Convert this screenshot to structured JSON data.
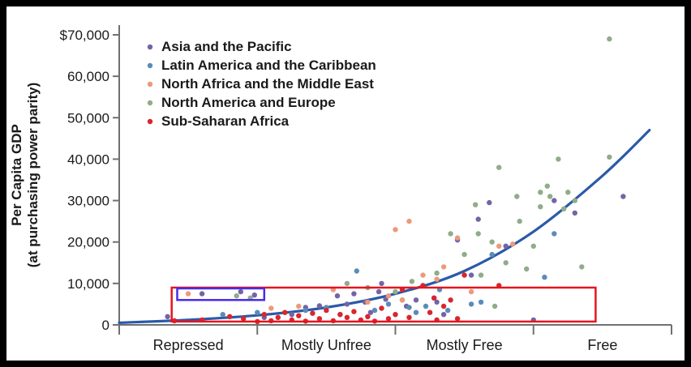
{
  "chart_data": {
    "type": "scatter",
    "ylabel_line1": "Per Capita GDP",
    "ylabel_line2": "(at purchasing power parity)",
    "ylim": [
      0,
      70000
    ],
    "y_ticks": [
      {
        "value": 0,
        "label": "0"
      },
      {
        "value": 10000,
        "label": "10,000"
      },
      {
        "value": 20000,
        "label": "20,000"
      },
      {
        "value": 30000,
        "label": "30,000"
      },
      {
        "value": 40000,
        "label": "40,000"
      },
      {
        "value": 50000,
        "label": "50,000"
      },
      {
        "value": 60000,
        "label": "60,000"
      },
      {
        "value": 70000,
        "label": "$70,000"
      }
    ],
    "xlim": [
      0,
      4
    ],
    "categories": [
      "Repressed",
      "Mostly Unfree",
      "Mostly Free",
      "Free"
    ],
    "legend_position": "top-left",
    "series": [
      {
        "name": "Asia and the Pacific",
        "color": "#7464a6",
        "points": [
          [
            0.35,
            2000
          ],
          [
            0.6,
            7500
          ],
          [
            0.88,
            8000
          ],
          [
            0.98,
            7200
          ],
          [
            1.05,
            1800
          ],
          [
            1.25,
            2500
          ],
          [
            1.35,
            4200
          ],
          [
            1.45,
            4600
          ],
          [
            1.58,
            7000
          ],
          [
            1.65,
            5000
          ],
          [
            1.7,
            7500
          ],
          [
            1.78,
            5500
          ],
          [
            1.82,
            3000
          ],
          [
            1.88,
            8000
          ],
          [
            1.93,
            6200
          ],
          [
            2.08,
            4500
          ],
          [
            2.15,
            6000
          ],
          [
            2.3,
            5500
          ],
          [
            2.35,
            2500
          ],
          [
            2.45,
            20500
          ],
          [
            2.55,
            12000
          ],
          [
            2.6,
            25500
          ],
          [
            2.68,
            29500
          ],
          [
            2.8,
            19000
          ],
          [
            3.15,
            30000
          ],
          [
            3.3,
            27000
          ],
          [
            3.65,
            31000
          ],
          [
            3.0,
            1200
          ],
          [
            1.9,
            10000
          ]
        ]
      },
      {
        "name": "Latin America and the Caribbean",
        "color": "#5b8cb8",
        "points": [
          [
            0.75,
            2500
          ],
          [
            1.0,
            3000
          ],
          [
            1.35,
            3500
          ],
          [
            1.5,
            4200
          ],
          [
            1.6,
            2500
          ],
          [
            1.72,
            13000
          ],
          [
            1.85,
            3500
          ],
          [
            1.95,
            5000
          ],
          [
            2.05,
            6000
          ],
          [
            2.1,
            4200
          ],
          [
            2.15,
            3000
          ],
          [
            2.22,
            4500
          ],
          [
            2.28,
            6500
          ],
          [
            2.32,
            8500
          ],
          [
            2.38,
            3500
          ],
          [
            2.55,
            5000
          ],
          [
            2.62,
            5500
          ],
          [
            2.7,
            17000
          ],
          [
            3.08,
            11500
          ],
          [
            3.15,
            22000
          ]
        ]
      },
      {
        "name": "North Africa and the Middle East",
        "color": "#ec9a7a",
        "points": [
          [
            0.5,
            7500
          ],
          [
            1.1,
            4000
          ],
          [
            1.3,
            4500
          ],
          [
            1.55,
            8500
          ],
          [
            1.8,
            5500
          ],
          [
            1.95,
            7000
          ],
          [
            2.0,
            23000
          ],
          [
            2.1,
            25000
          ],
          [
            2.3,
            11000
          ],
          [
            2.35,
            14000
          ],
          [
            2.45,
            21000
          ],
          [
            2.55,
            8000
          ],
          [
            2.75,
            19000
          ],
          [
            2.85,
            19500
          ],
          [
            2.05,
            6000
          ],
          [
            2.2,
            12000
          ]
        ]
      },
      {
        "name": "North America and Europe",
        "color": "#8fad88",
        "points": [
          [
            0.85,
            7000
          ],
          [
            0.95,
            6500
          ],
          [
            1.65,
            10000
          ],
          [
            1.8,
            9000
          ],
          [
            2.0,
            8000
          ],
          [
            2.12,
            10500
          ],
          [
            2.3,
            12500
          ],
          [
            2.4,
            22000
          ],
          [
            2.5,
            17000
          ],
          [
            2.58,
            29000
          ],
          [
            2.62,
            12000
          ],
          [
            2.7,
            20000
          ],
          [
            2.72,
            4500
          ],
          [
            2.75,
            38000
          ],
          [
            2.8,
            15000
          ],
          [
            2.88,
            31000
          ],
          [
            2.9,
            25000
          ],
          [
            2.95,
            13500
          ],
          [
            3.05,
            28500
          ],
          [
            3.05,
            32000
          ],
          [
            3.1,
            33500
          ],
          [
            3.12,
            31000
          ],
          [
            3.18,
            40000
          ],
          [
            3.22,
            28000
          ],
          [
            3.25,
            32000
          ],
          [
            3.3,
            30000
          ],
          [
            3.35,
            14000
          ],
          [
            3.55,
            40500
          ],
          [
            3.55,
            69000
          ],
          [
            2.6,
            22000
          ],
          [
            3.0,
            19000
          ]
        ]
      },
      {
        "name": "Sub-Saharan Africa",
        "color": "#d8262e",
        "points": [
          [
            0.4,
            1000
          ],
          [
            0.6,
            1200
          ],
          [
            0.8,
            2000
          ],
          [
            0.9,
            1500
          ],
          [
            1.0,
            800
          ],
          [
            1.05,
            2500
          ],
          [
            1.1,
            1000
          ],
          [
            1.15,
            1800
          ],
          [
            1.2,
            3000
          ],
          [
            1.25,
            1200
          ],
          [
            1.3,
            2200
          ],
          [
            1.35,
            900
          ],
          [
            1.4,
            2800
          ],
          [
            1.45,
            1500
          ],
          [
            1.5,
            3500
          ],
          [
            1.55,
            1000
          ],
          [
            1.6,
            2500
          ],
          [
            1.65,
            1800
          ],
          [
            1.7,
            3200
          ],
          [
            1.75,
            1200
          ],
          [
            1.8,
            2000
          ],
          [
            1.85,
            900
          ],
          [
            1.9,
            4000
          ],
          [
            1.95,
            1500
          ],
          [
            2.0,
            2500
          ],
          [
            2.05,
            8500
          ],
          [
            2.1,
            1800
          ],
          [
            2.2,
            9500
          ],
          [
            2.25,
            3000
          ],
          [
            2.3,
            1200
          ],
          [
            2.35,
            4500
          ],
          [
            2.4,
            6000
          ],
          [
            2.45,
            1500
          ],
          [
            2.5,
            12000
          ],
          [
            2.75,
            9500
          ],
          [
            2.28,
            6500
          ]
        ]
      }
    ],
    "trendline": {
      "color": "#2a5aa8",
      "points": [
        [
          0,
          500
        ],
        [
          0.5,
          1200
        ],
        [
          1,
          2300
        ],
        [
          1.5,
          4200
        ],
        [
          2,
          7500
        ],
        [
          2.5,
          13000
        ],
        [
          3,
          22500
        ],
        [
          3.5,
          36000
        ],
        [
          3.84,
          47000
        ]
      ]
    },
    "annotations": [
      {
        "shape": "rectangle",
        "color": "#e8141e",
        "x0": 0.38,
        "x1": 3.45,
        "y0": 800,
        "y1": 9000
      },
      {
        "shape": "rectangle",
        "color": "#4a2be8",
        "x0": 0.42,
        "x1": 1.05,
        "y0": 6000,
        "y1": 8800
      }
    ]
  }
}
